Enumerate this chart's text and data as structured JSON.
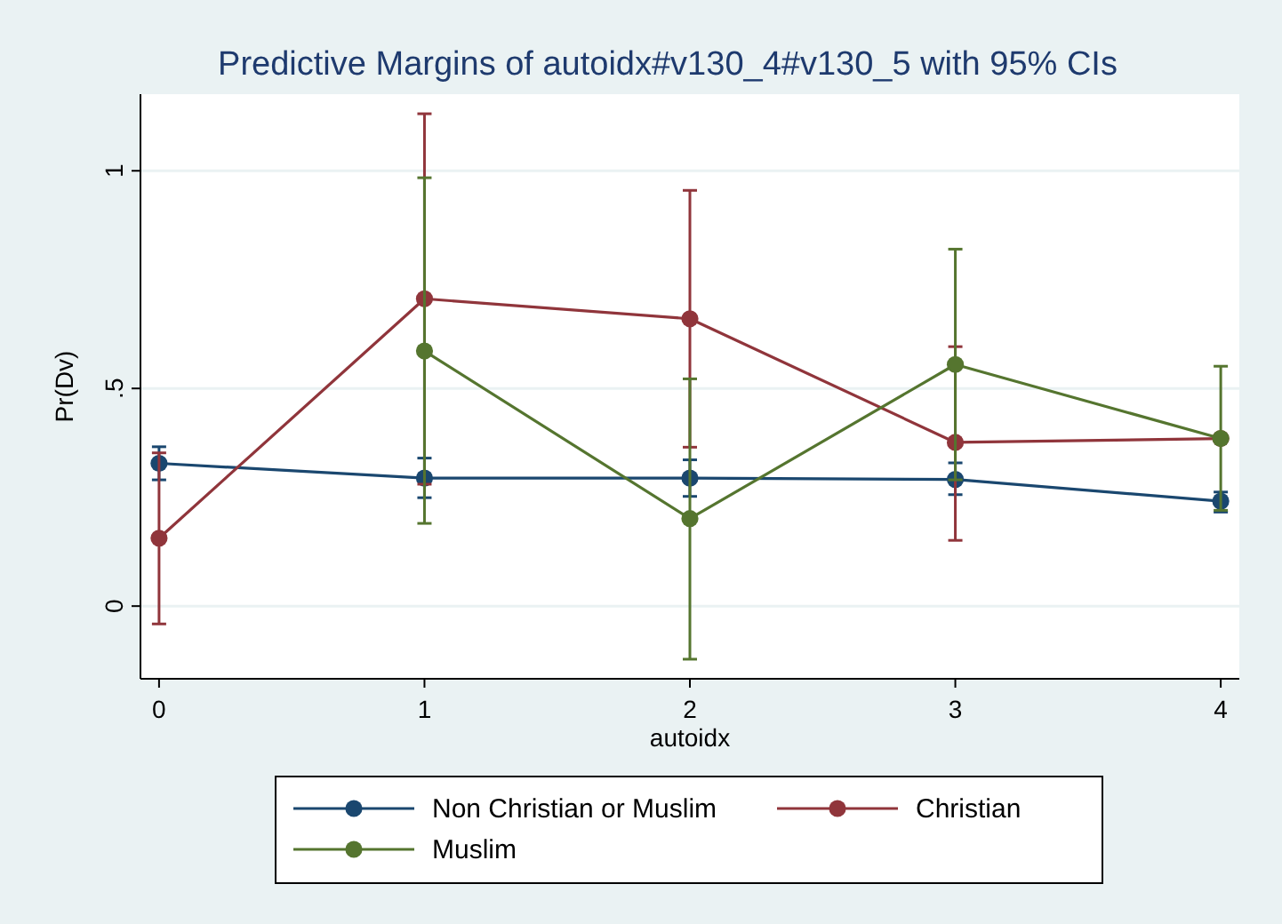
{
  "chart_data": {
    "type": "line",
    "title": "Predictive Margins of autoidx#v130_4#v130_5 with 95% CIs",
    "xlabel": "autoidx",
    "ylabel": "Pr(Dv)",
    "x": [
      0,
      1,
      2,
      3,
      4
    ],
    "xlim": [
      -0.07,
      4.07
    ],
    "xticks": [
      0,
      1,
      2,
      3,
      4
    ],
    "ylim": [
      -0.167,
      1.176
    ],
    "yticks": [
      0,
      {
        "value": 0.5,
        "label": ".5"
      },
      1
    ],
    "grid": "y",
    "legend": "bottom",
    "marker": "circle",
    "series": [
      {
        "name": "Non Christian or Muslim",
        "color": "#1a476f",
        "values": [
          0.328,
          0.294,
          0.294,
          0.291,
          0.241
        ],
        "errors": [
          [
            0.29,
            0.366
          ],
          [
            0.249,
            0.34
          ],
          [
            0.252,
            0.336
          ],
          [
            0.256,
            0.329
          ],
          [
            0.216,
            0.262
          ]
        ]
      },
      {
        "name": "Christian",
        "color": "#90353b",
        "values": [
          0.156,
          0.706,
          0.66,
          0.376,
          0.385
        ],
        "errors": [
          [
            -0.041,
            0.352
          ],
          [
            0.28,
            1.131
          ],
          [
            0.365,
            0.955
          ],
          [
            0.151,
            0.596
          ],
          null
        ]
      },
      {
        "name": "Muslim",
        "color": "#55752f",
        "values": [
          null,
          0.586,
          0.201,
          0.555,
          0.385
        ],
        "errors": [
          null,
          [
            0.19,
            0.984
          ],
          [
            -0.122,
            0.522
          ],
          [
            0.29,
            0.82
          ],
          [
            0.22,
            0.551
          ]
        ]
      }
    ]
  }
}
